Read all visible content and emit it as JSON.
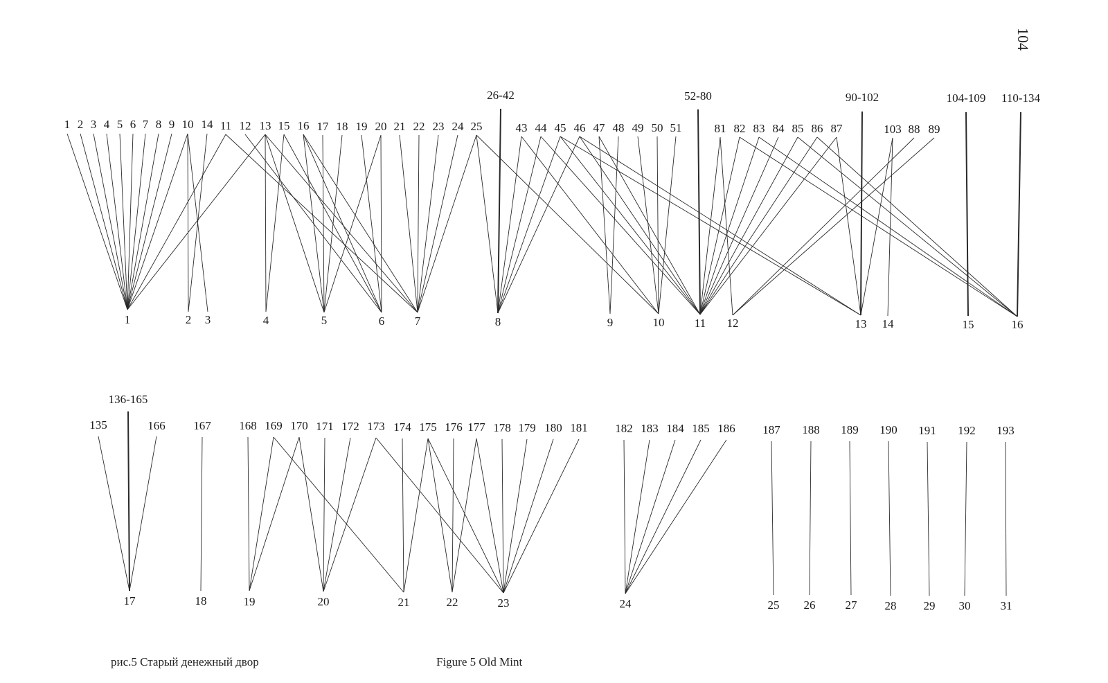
{
  "page_number": "104",
  "caption_ru": "рис.5  Старый денежный двор",
  "caption_en": "Figure 5    Old Mint",
  "links": [
    [
      "1",
      "1"
    ],
    [
      "2",
      "1"
    ],
    [
      "3",
      "1"
    ],
    [
      "4",
      "1"
    ],
    [
      "5",
      "1"
    ],
    [
      "6",
      "1"
    ],
    [
      "7",
      "1"
    ],
    [
      "8",
      "1"
    ],
    [
      "9",
      "1"
    ],
    [
      "10",
      "1"
    ],
    [
      "10",
      "2"
    ],
    [
      "10",
      "3"
    ],
    [
      "14",
      "2"
    ],
    [
      "11",
      "1"
    ],
    [
      "11",
      "7"
    ],
    [
      "12",
      "6"
    ],
    [
      "13",
      "1"
    ],
    [
      "13",
      "4"
    ],
    [
      "13",
      "5"
    ],
    [
      "13",
      "7"
    ],
    [
      "15",
      "4"
    ],
    [
      "15",
      "6"
    ],
    [
      "16",
      "5"
    ],
    [
      "16",
      "6"
    ],
    [
      "16",
      "7"
    ],
    [
      "17",
      "5"
    ],
    [
      "18",
      "5"
    ],
    [
      "19",
      "6"
    ],
    [
      "20",
      "5"
    ],
    [
      "20",
      "6"
    ],
    [
      "21",
      "7"
    ],
    [
      "22",
      "7"
    ],
    [
      "23",
      "7"
    ],
    [
      "24",
      "7"
    ],
    [
      "25",
      "8"
    ],
    [
      "25",
      "7"
    ],
    [
      "25",
      "10"
    ],
    [
      "26-42",
      "8"
    ],
    [
      "43",
      "8"
    ],
    [
      "44",
      "8"
    ],
    [
      "45",
      "8"
    ],
    [
      "46",
      "8"
    ],
    [
      "43",
      "10"
    ],
    [
      "44",
      "11"
    ],
    [
      "45",
      "11"
    ],
    [
      "46",
      "11"
    ],
    [
      "45",
      "13"
    ],
    [
      "46",
      "13"
    ],
    [
      "47",
      "9"
    ],
    [
      "47",
      "11"
    ],
    [
      "48",
      "9"
    ],
    [
      "49",
      "10"
    ],
    [
      "50",
      "10"
    ],
    [
      "51",
      "10"
    ],
    [
      "52-80",
      "11"
    ],
    [
      "81",
      "11"
    ],
    [
      "81",
      "12"
    ],
    [
      "82",
      "11"
    ],
    [
      "82",
      "16"
    ],
    [
      "83",
      "11"
    ],
    [
      "84",
      "11"
    ],
    [
      "85",
      "11"
    ],
    [
      "83",
      "16"
    ],
    [
      "85",
      "16"
    ],
    [
      "86",
      "11"
    ],
    [
      "86",
      "16"
    ],
    [
      "87",
      "11"
    ],
    [
      "87",
      "13"
    ],
    [
      "88",
      "12"
    ],
    [
      "89",
      "12"
    ],
    [
      "90-102",
      "13"
    ],
    [
      "103",
      "13"
    ],
    [
      "103",
      "14"
    ],
    [
      "104-109",
      "15"
    ],
    [
      "110-134",
      "16"
    ],
    [
      "135",
      "17"
    ],
    [
      "136-165",
      "17"
    ],
    [
      "166",
      "17"
    ],
    [
      "167",
      "18"
    ],
    [
      "168",
      "19"
    ],
    [
      "169",
      "19"
    ],
    [
      "169",
      "21"
    ],
    [
      "170",
      "19"
    ],
    [
      "170",
      "20"
    ],
    [
      "171",
      "20"
    ],
    [
      "172",
      "20"
    ],
    [
      "173",
      "20"
    ],
    [
      "173",
      "23"
    ],
    [
      "174",
      "21"
    ],
    [
      "175",
      "21"
    ],
    [
      "175",
      "22"
    ],
    [
      "175",
      "23"
    ],
    [
      "176",
      "22"
    ],
    [
      "177",
      "22"
    ],
    [
      "177",
      "23"
    ],
    [
      "178",
      "23"
    ],
    [
      "179",
      "23"
    ],
    [
      "180",
      "23"
    ],
    [
      "181",
      "23"
    ],
    [
      "182",
      "24"
    ],
    [
      "183",
      "24"
    ],
    [
      "184",
      "24"
    ],
    [
      "185",
      "24"
    ],
    [
      "186",
      "24"
    ],
    [
      "187",
      "25"
    ],
    [
      "188",
      "26"
    ],
    [
      "189",
      "27"
    ],
    [
      "190",
      "28"
    ],
    [
      "191",
      "29"
    ],
    [
      "192",
      "30"
    ],
    [
      "193",
      "31"
    ]
  ]
}
